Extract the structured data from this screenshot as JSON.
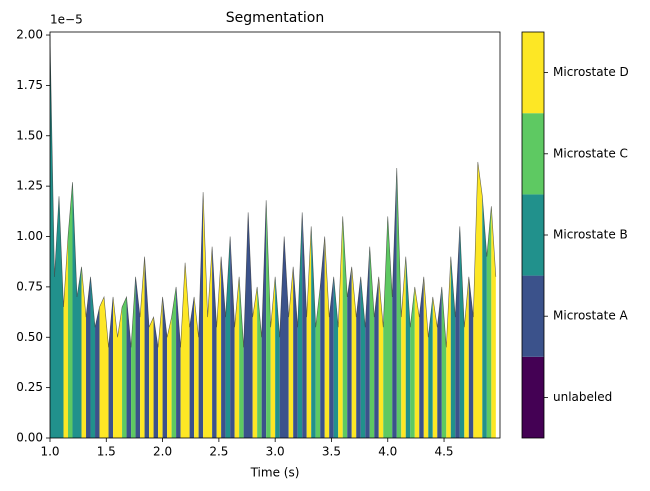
{
  "chart_data": {
    "type": "segmentation",
    "title": "Segmentation",
    "xlabel": "Time (s)",
    "y_offset_label": "1e−5",
    "states": [
      "unlabeled",
      "Microstate A",
      "Microstate B",
      "Microstate C",
      "Microstate D"
    ],
    "state_colors": [
      "#440154",
      "#3b528b",
      "#21918c",
      "#5ec962",
      "#fde725"
    ],
    "line_color": "#2b2b2b",
    "x": [
      1.0,
      1.04,
      1.08,
      1.12,
      1.16,
      1.2,
      1.24,
      1.28,
      1.32,
      1.36,
      1.4,
      1.44,
      1.48,
      1.52,
      1.56,
      1.6,
      1.64,
      1.68,
      1.72,
      1.76,
      1.8,
      1.84,
      1.88,
      1.92,
      1.96,
      2.0,
      2.04,
      2.08,
      2.12,
      2.16,
      2.2,
      2.24,
      2.28,
      2.32,
      2.36,
      2.4,
      2.44,
      2.48,
      2.52,
      2.56,
      2.6,
      2.64,
      2.68,
      2.72,
      2.76,
      2.8,
      2.84,
      2.88,
      2.92,
      2.96,
      3.0,
      3.04,
      3.08,
      3.12,
      3.16,
      3.2,
      3.24,
      3.28,
      3.32,
      3.36,
      3.4,
      3.44,
      3.48,
      3.52,
      3.56,
      3.6,
      3.64,
      3.68,
      3.72,
      3.76,
      3.8,
      3.84,
      3.88,
      3.92,
      3.96,
      4.0,
      4.04,
      4.08,
      4.12,
      4.16,
      4.2,
      4.24,
      4.28,
      4.32,
      4.36,
      4.4,
      4.44,
      4.48,
      4.52,
      4.56,
      4.6,
      4.64,
      4.68,
      4.72,
      4.76,
      4.8,
      4.84,
      4.88,
      4.92,
      4.96
    ],
    "values": [
      2.0,
      0.8,
      1.2,
      0.65,
      1.0,
      1.27,
      0.7,
      0.85,
      0.6,
      0.8,
      0.55,
      0.65,
      0.7,
      0.45,
      0.7,
      0.5,
      0.65,
      0.7,
      0.45,
      0.8,
      0.6,
      0.9,
      0.55,
      0.6,
      0.45,
      0.7,
      0.5,
      0.6,
      0.75,
      0.45,
      0.87,
      0.55,
      0.7,
      0.5,
      1.22,
      0.6,
      0.95,
      0.55,
      0.9,
      0.6,
      1.0,
      0.55,
      0.8,
      0.45,
      1.12,
      0.6,
      0.75,
      0.5,
      1.18,
      0.55,
      0.8,
      0.5,
      1.0,
      0.6,
      0.85,
      0.55,
      1.12,
      0.6,
      1.05,
      0.55,
      0.75,
      1.0,
      0.6,
      0.8,
      0.55,
      1.1,
      0.7,
      0.85,
      0.6,
      0.8,
      0.55,
      0.95,
      0.6,
      0.8,
      0.55,
      1.1,
      0.7,
      1.34,
      0.6,
      0.9,
      0.55,
      0.75,
      0.6,
      0.8,
      0.5,
      0.7,
      0.55,
      0.75,
      0.45,
      0.9,
      0.6,
      1.05,
      0.55,
      0.8,
      0.6,
      1.37,
      1.2,
      0.9,
      1.15,
      0.8
    ],
    "segments": [
      2,
      2,
      2,
      4,
      3,
      2,
      2,
      4,
      1,
      2,
      1,
      4,
      4,
      1,
      4,
      4,
      3,
      1,
      3,
      1,
      4,
      1,
      4,
      1,
      4,
      1,
      4,
      3,
      1,
      4,
      4,
      1,
      4,
      1,
      4,
      4,
      1,
      4,
      1,
      2,
      1,
      4,
      3,
      1,
      1,
      4,
      3,
      1,
      3,
      4,
      2,
      1,
      1,
      4,
      1,
      2,
      1,
      4,
      2,
      3,
      1,
      4,
      1,
      2,
      4,
      3,
      1,
      4,
      1,
      2,
      1,
      3,
      1,
      4,
      3,
      3,
      1,
      3,
      4,
      2,
      3,
      4,
      1,
      4,
      2,
      4,
      1,
      3,
      4,
      2,
      1,
      2,
      4,
      1,
      4,
      4,
      2,
      3,
      4,
      4
    ],
    "xlim": [
      1.0,
      4.997
    ],
    "xticks": [
      {
        "value": 1.0,
        "label": "1.0"
      },
      {
        "value": 1.5,
        "label": "1.5"
      },
      {
        "value": 2.0,
        "label": "2.0"
      },
      {
        "value": 2.5,
        "label": "2.5"
      },
      {
        "value": 3.0,
        "label": "3.0"
      },
      {
        "value": 3.5,
        "label": "3.5"
      },
      {
        "value": 4.0,
        "label": "4.0"
      },
      {
        "value": 4.5,
        "label": "4.5"
      }
    ],
    "ylim": [
      0,
      2.015
    ],
    "yticks": [
      {
        "value": 0,
        "label": "0.00"
      },
      {
        "value": 0.25,
        "label": "0.25"
      },
      {
        "value": 0.5,
        "label": "0.50"
      },
      {
        "value": 0.75,
        "label": "0.75"
      },
      {
        "value": 1.0,
        "label": "1.00"
      },
      {
        "value": 1.25,
        "label": "1.25"
      },
      {
        "value": 1.5,
        "label": "1.50"
      },
      {
        "value": 1.75,
        "label": "1.75"
      },
      {
        "value": 2.0,
        "label": "2.00"
      }
    ]
  }
}
